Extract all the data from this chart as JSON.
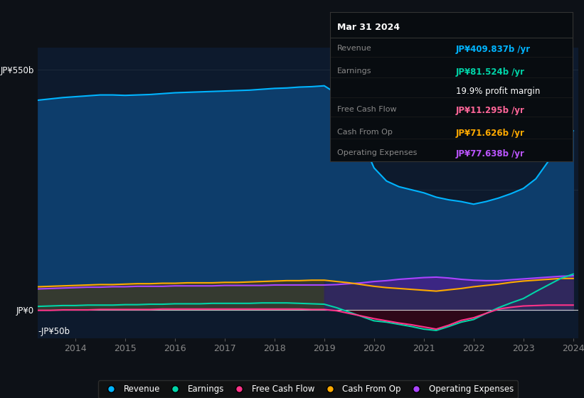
{
  "bg_color": "#0d1117",
  "plot_bg_color": "#0d1a2d",
  "ylim": [
    -65,
    600
  ],
  "years": [
    2013.25,
    2013.5,
    2013.75,
    2014.0,
    2014.25,
    2014.5,
    2014.75,
    2015.0,
    2015.25,
    2015.5,
    2015.75,
    2016.0,
    2016.25,
    2016.5,
    2016.75,
    2017.0,
    2017.25,
    2017.5,
    2017.75,
    2018.0,
    2018.25,
    2018.5,
    2018.75,
    2019.0,
    2019.25,
    2019.5,
    2019.75,
    2020.0,
    2020.25,
    2020.5,
    2020.75,
    2021.0,
    2021.25,
    2021.5,
    2021.75,
    2022.0,
    2022.25,
    2022.5,
    2022.75,
    2023.0,
    2023.25,
    2023.5,
    2023.75,
    2024.0
  ],
  "revenue": [
    480,
    483,
    486,
    488,
    490,
    492,
    492,
    491,
    492,
    493,
    495,
    497,
    498,
    499,
    500,
    501,
    502,
    503,
    505,
    507,
    508,
    510,
    511,
    513,
    495,
    455,
    390,
    325,
    295,
    282,
    275,
    268,
    258,
    252,
    248,
    242,
    248,
    256,
    266,
    278,
    300,
    340,
    378,
    410
  ],
  "earnings": [
    8,
    9,
    10,
    10,
    11,
    11,
    11,
    12,
    12,
    13,
    13,
    14,
    14,
    14,
    15,
    15,
    15,
    15,
    16,
    16,
    16,
    15,
    14,
    13,
    5,
    -5,
    -15,
    -25,
    -28,
    -33,
    -38,
    -44,
    -47,
    -38,
    -28,
    -22,
    -8,
    5,
    16,
    26,
    42,
    57,
    72,
    82
  ],
  "free_cash_flow": [
    -1,
    -1,
    0,
    0,
    0,
    1,
    1,
    1,
    1,
    1,
    2,
    2,
    2,
    2,
    2,
    2,
    2,
    2,
    2,
    2,
    2,
    2,
    1,
    1,
    -2,
    -8,
    -14,
    -20,
    -25,
    -30,
    -34,
    -39,
    -44,
    -35,
    -24,
    -18,
    -8,
    2,
    6,
    9,
    10,
    11,
    11,
    11
  ],
  "cash_from_op": [
    53,
    54,
    55,
    56,
    57,
    58,
    58,
    59,
    60,
    60,
    61,
    61,
    62,
    62,
    62,
    63,
    63,
    64,
    65,
    66,
    67,
    67,
    68,
    68,
    65,
    62,
    58,
    54,
    51,
    49,
    47,
    45,
    43,
    46,
    49,
    53,
    56,
    59,
    63,
    66,
    68,
    70,
    72,
    72
  ],
  "operating_expenses": [
    48,
    49,
    50,
    51,
    52,
    52,
    53,
    53,
    54,
    54,
    54,
    55,
    55,
    55,
    55,
    56,
    56,
    56,
    56,
    57,
    57,
    57,
    57,
    57,
    58,
    60,
    62,
    65,
    67,
    70,
    72,
    74,
    75,
    73,
    70,
    68,
    67,
    67,
    69,
    71,
    73,
    75,
    77,
    78
  ],
  "revenue_line_color": "#00b4ff",
  "revenue_fill_color": "#0d3d6b",
  "earnings_line_color": "#00d4a8",
  "fcf_line_color": "#ff3388",
  "cfo_line_color": "#ffaa00",
  "opex_line_color": "#aa44ff",
  "opex_fill_color": "#442288",
  "cfo_fill_pre_color": "#3a3a2a",
  "cfo_fill_post_color": "#2a2a45",
  "earnings_neg_fill": "#3d0010",
  "grid_color": "#1e2d3d",
  "zero_line_color": "#cccccc",
  "tick_color": "#888888",
  "ylabel_550": "JP¥550b",
  "ylabel_0": "JP¥0",
  "ylabel_neg50": "-JP¥50b",
  "xtick_labels": [
    "2014",
    "2015",
    "2016",
    "2017",
    "2018",
    "2019",
    "2020",
    "2021",
    "2022",
    "2023",
    "2024"
  ],
  "xtick_values": [
    2014,
    2015,
    2016,
    2017,
    2018,
    2019,
    2020,
    2021,
    2022,
    2023,
    2024
  ],
  "split_idx": 23,
  "legend_labels": [
    "Revenue",
    "Earnings",
    "Free Cash Flow",
    "Cash From Op",
    "Operating Expenses"
  ],
  "legend_colors": [
    "#00b4ff",
    "#00d4a8",
    "#ff3388",
    "#ffaa00",
    "#aa44ff"
  ],
  "tooltip": {
    "date": "Mar 31 2024",
    "rows": [
      {
        "label": "Revenue",
        "value": "JP¥409.837b /yr",
        "color": "#00b4ff"
      },
      {
        "label": "Earnings",
        "value": "JP¥81.524b /yr",
        "color": "#00d4a8"
      },
      {
        "label": "",
        "value": "19.9% profit margin",
        "color": "#ffffff"
      },
      {
        "label": "Free Cash Flow",
        "value": "JP¥11.295b /yr",
        "color": "#ff6699"
      },
      {
        "label": "Cash From Op",
        "value": "JP¥71.626b /yr",
        "color": "#ffaa00"
      },
      {
        "label": "Operating Expenses",
        "value": "JP¥77.638b /yr",
        "color": "#bb55ff"
      }
    ]
  }
}
